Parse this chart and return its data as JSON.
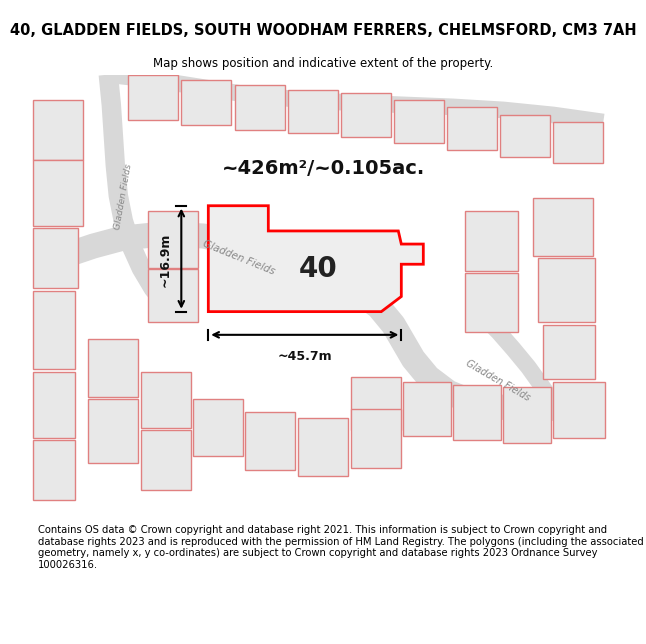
{
  "title": "40, GLADDEN FIELDS, SOUTH WOODHAM FERRERS, CHELMSFORD, CM3 7AH",
  "subtitle": "Map shows position and indicative extent of the property.",
  "area_label": "~426m²/~0.105ac.",
  "width_label": "~45.7m",
  "height_label": "~16.9m",
  "plot_number": "40",
  "footer": "Contains OS data © Crown copyright and database right 2021. This information is subject to Crown copyright and database rights 2023 and is reproduced with the permission of HM Land Registry. The polygons (including the associated geometry, namely x, y co-ordinates) are subject to Crown copyright and database rights 2023 Ordnance Survey 100026316.",
  "bg_color": "#ffffff",
  "parcel_fill": "#e8e8e8",
  "parcel_edge": "#e08080",
  "road_fill": "#d8d8d8",
  "highlight_fill": "#eeeeee",
  "highlight_edge": "#ff0000",
  "title_fontsize": 10.5,
  "subtitle_fontsize": 8.5,
  "footer_fontsize": 7.2,
  "plot_label_fontsize": 20,
  "area_label_fontsize": 14,
  "dim_label_fontsize": 9
}
